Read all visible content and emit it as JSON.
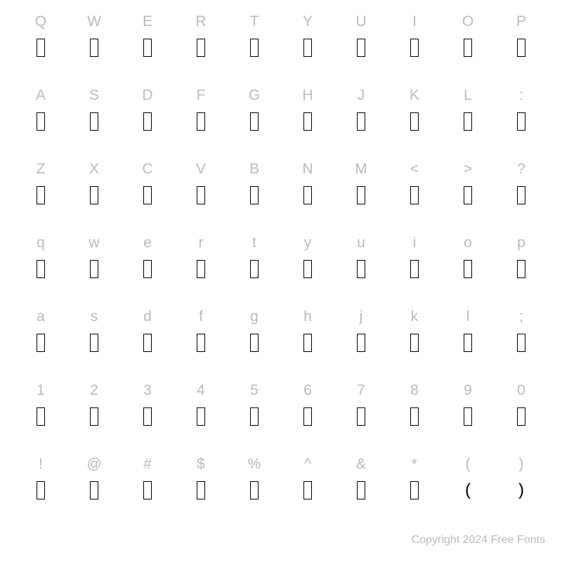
{
  "grid": {
    "rows": [
      {
        "labels": [
          "Q",
          "W",
          "E",
          "R",
          "T",
          "Y",
          "U",
          "I",
          "O",
          "P"
        ],
        "glyphs": [
          "tofu",
          "tofu",
          "tofu",
          "tofu",
          "tofu",
          "tofu",
          "tofu",
          "tofu",
          "tofu",
          "tofu"
        ]
      },
      {
        "labels": [
          "A",
          "S",
          "D",
          "F",
          "G",
          "H",
          "J",
          "K",
          "L",
          ":"
        ],
        "glyphs": [
          "tofu",
          "tofu",
          "tofu",
          "tofu",
          "tofu",
          "tofu",
          "tofu",
          "tofu",
          "tofu",
          "tofu"
        ]
      },
      {
        "labels": [
          "Z",
          "X",
          "C",
          "V",
          "B",
          "N",
          "M",
          "<",
          ">",
          "?"
        ],
        "glyphs": [
          "tofu",
          "tofu",
          "tofu",
          "tofu",
          "tofu",
          "tofu",
          "tofu",
          "tofu",
          "tofu",
          "tofu"
        ]
      },
      {
        "labels": [
          "q",
          "w",
          "e",
          "r",
          "t",
          "y",
          "u",
          "i",
          "o",
          "p"
        ],
        "glyphs": [
          "tofu",
          "tofu",
          "tofu",
          "tofu",
          "tofu",
          "tofu",
          "tofu",
          "tofu",
          "tofu",
          "tofu"
        ]
      },
      {
        "labels": [
          "a",
          "s",
          "d",
          "f",
          "g",
          "h",
          "j",
          "k",
          "l",
          ";"
        ],
        "glyphs": [
          "tofu",
          "tofu",
          "tofu",
          "tofu",
          "tofu",
          "tofu",
          "tofu",
          "tofu",
          "tofu",
          "tofu"
        ]
      },
      {
        "labels": [
          "1",
          "2",
          "3",
          "4",
          "5",
          "6",
          "7",
          "8",
          "9",
          "0"
        ],
        "glyphs": [
          "tofu",
          "tofu",
          "tofu",
          "tofu",
          "tofu",
          "tofu",
          "tofu",
          "tofu",
          "tofu",
          "tofu"
        ]
      },
      {
        "labels": [
          "!",
          "@",
          "#",
          "$",
          "%",
          "^",
          "&",
          "*",
          "(",
          ")"
        ],
        "glyphs": [
          "tofu",
          "tofu",
          "tofu",
          "tofu",
          "tofu",
          "tofu",
          "tofu",
          "tofu",
          "(",
          ")"
        ]
      }
    ],
    "label_color": "#bbbbbb",
    "label_fontsize": 21,
    "tofu_width": 12,
    "tofu_height": 26,
    "tofu_border_color": "#000000",
    "background_color": "#ffffff"
  },
  "footer": {
    "text": "Copyright 2024 Free Fonts",
    "color": "#bbbbbb",
    "fontsize": 16
  }
}
